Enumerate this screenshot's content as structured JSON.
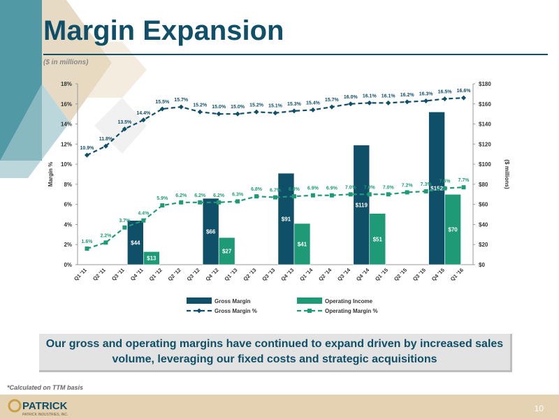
{
  "slide": {
    "title": "Margin Expansion",
    "subtitle": "($ in millions)",
    "callout": "Our gross and operating margins have continued to expand driven by increased sales volume, leveraging our fixed costs and strategic acquisitions",
    "footnote": "*Calculated on TTM basis",
    "page_number": "10",
    "logo_text": "PATRICK",
    "logo_tagline": "PATRICK INDUSTRIES, INC.",
    "colors": {
      "title": "#0f4f68",
      "gross": "#0f4f68",
      "operating": "#1f9a77",
      "footer": "#e5d2b3",
      "deco_teal": "#3f8e9c",
      "deco_tan": "#d7c19e"
    }
  },
  "chart_data": {
    "type": "bar",
    "categories": [
      "Q1 '11",
      "Q2 '11",
      "Q3 '11",
      "Q4 '11",
      "Q1 '12",
      "Q2 '12",
      "Q3 '12",
      "Q4 '12",
      "Q1 '13",
      "Q2 '13",
      "Q3 '13",
      "Q4 '13",
      "Q1 '14",
      "Q2 '14",
      "Q3 '14",
      "Q4 '14",
      "Q1 '15",
      "Q2 '15",
      "Q3 '15",
      "Q4 '15",
      "Q1 '16"
    ],
    "bar_series": [
      {
        "name": "Gross Margin",
        "axis": "right",
        "color": "#0f4f68",
        "points": [
          {
            "category": "Q4 '11",
            "value": 44,
            "label": "$44"
          },
          {
            "category": "Q4 '12",
            "value": 66,
            "label": "$66"
          },
          {
            "category": "Q4 '13",
            "value": 91,
            "label": "$91"
          },
          {
            "category": "Q4 '14",
            "value": 119,
            "label": "$119"
          },
          {
            "category": "Q4 '15",
            "value": 152,
            "label": "$152"
          }
        ]
      },
      {
        "name": "Operating Income",
        "axis": "right",
        "color": "#1f9a77",
        "points": [
          {
            "category": "Q4 '11",
            "value": 13,
            "label": "$13"
          },
          {
            "category": "Q4 '12",
            "value": 27,
            "label": "$27"
          },
          {
            "category": "Q4 '13",
            "value": 41,
            "label": "$41"
          },
          {
            "category": "Q4 '14",
            "value": 51,
            "label": "$51"
          },
          {
            "category": "Q4 '15",
            "value": 70,
            "label": "$70"
          }
        ]
      }
    ],
    "line_series": [
      {
        "name": "Gross Margin %",
        "axis": "left",
        "color": "#0f4f68",
        "marker": "diamond",
        "values": [
          10.9,
          11.8,
          13.5,
          14.4,
          15.5,
          15.7,
          15.2,
          15.0,
          15.0,
          15.2,
          15.1,
          15.3,
          15.4,
          15.7,
          16.0,
          16.1,
          16.1,
          16.2,
          16.3,
          16.5,
          16.6
        ],
        "labels": [
          "10.9%",
          "11.8%",
          "13.5%",
          "14.4%",
          "15.5%",
          "15.7%",
          "15.2%",
          "15.0%",
          "15.0%",
          "15.2%",
          "15.1%",
          "15.3%",
          "15.4%",
          "15.7%",
          "16.0%",
          "16.1%",
          "16.1%",
          "16.2%",
          "16.3%",
          "16.5%",
          "16.6%"
        ]
      },
      {
        "name": "Operating Margin %",
        "axis": "left",
        "color": "#1f9a77",
        "marker": "square",
        "values": [
          1.6,
          2.2,
          3.7,
          4.4,
          5.9,
          6.2,
          6.2,
          6.2,
          6.3,
          6.8,
          6.7,
          6.8,
          6.9,
          6.9,
          7.0,
          7.0,
          7.0,
          7.2,
          7.3,
          7.6,
          7.7
        ],
        "labels": [
          "1.6%",
          "2.2%",
          "3.7%",
          "4.4%",
          "5.9%",
          "6.2%",
          "6.2%",
          "6.2%",
          "6.3%",
          "6.8%",
          "6.7%",
          "6.8%",
          "6.9%",
          "6.9%",
          "7.0%",
          "7.0%",
          "7.0%",
          "7.2%",
          "7.3%",
          "7.6%",
          "7.7%"
        ]
      }
    ],
    "left_axis": {
      "label": "Margin %",
      "range": [
        0,
        18
      ],
      "ticks": [
        0,
        2,
        4,
        6,
        8,
        10,
        12,
        14,
        16,
        18
      ],
      "tick_labels": [
        "0%",
        "2%",
        "4%",
        "6%",
        "8%",
        "10%",
        "12%",
        "14%",
        "16%",
        "18%"
      ]
    },
    "right_axis": {
      "label": "($ millions)",
      "range": [
        0,
        180
      ],
      "ticks": [
        0,
        20,
        40,
        60,
        80,
        100,
        120,
        140,
        160,
        180
      ],
      "tick_labels": [
        "$0",
        "$20",
        "$40",
        "$60",
        "$80",
        "$100",
        "$120",
        "$140",
        "$160",
        "$180"
      ]
    },
    "legend": {
      "placement": "bottom",
      "items": [
        "Gross Margin",
        "Operating Income",
        "Gross Margin %",
        "Operating Margin %"
      ]
    },
    "grid": false
  }
}
